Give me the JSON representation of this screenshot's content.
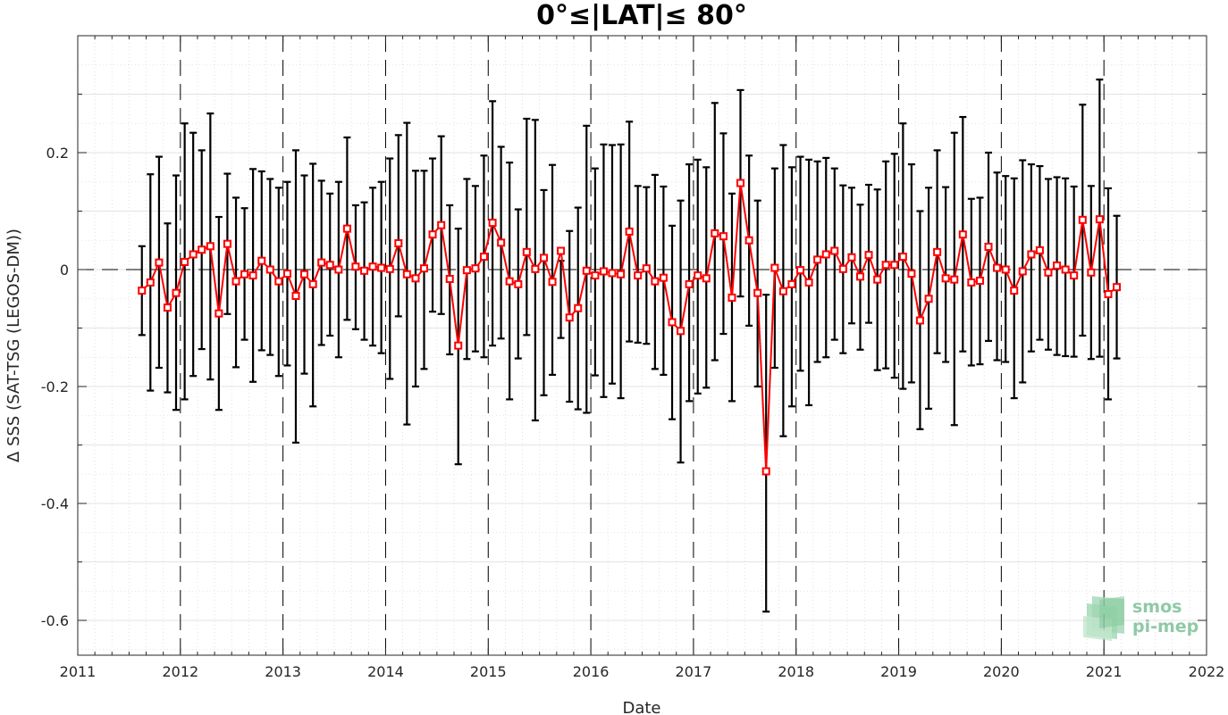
{
  "chart_data": {
    "type": "line",
    "title": "0°≤|LAT|≤ 80°",
    "xlabel": "Date",
    "ylabel": "Δ SSS (SAT-TSG (LEGOS-DM))",
    "xlim": [
      2011,
      2022
    ],
    "ylim": [
      -0.66,
      0.4
    ],
    "xticks": [
      2011,
      2012,
      2013,
      2014,
      2015,
      2016,
      2017,
      2018,
      2019,
      2020,
      2021,
      2022
    ],
    "xtick_labels": [
      "2011",
      "2012",
      "2013",
      "2014",
      "2015",
      "2016",
      "2017",
      "2018",
      "2019",
      "2020",
      "2021",
      "2022"
    ],
    "yticks": [
      0.2,
      0,
      -0.2,
      -0.4,
      -0.6
    ],
    "ytick_labels": [
      "0.2",
      "0",
      "-0.2",
      "-0.4",
      "-0.6"
    ],
    "grid": true,
    "reference_line_y": 0,
    "year_boundary_lines": true,
    "series": [
      {
        "color": "#ff0000",
        "marker": "square",
        "errorbar_color": "#000000",
        "x": [
          2011.625,
          2011.708,
          2011.792,
          2011.875,
          2011.958,
          2012.042,
          2012.125,
          2012.208,
          2012.292,
          2012.375,
          2012.458,
          2012.542,
          2012.625,
          2012.708,
          2012.792,
          2012.875,
          2012.958,
          2013.042,
          2013.125,
          2013.208,
          2013.292,
          2013.375,
          2013.458,
          2013.542,
          2013.625,
          2013.708,
          2013.792,
          2013.875,
          2013.958,
          2014.042,
          2014.125,
          2014.208,
          2014.292,
          2014.375,
          2014.458,
          2014.542,
          2014.625,
          2014.708,
          2014.792,
          2014.875,
          2014.958,
          2015.042,
          2015.125,
          2015.208,
          2015.292,
          2015.375,
          2015.458,
          2015.542,
          2015.625,
          2015.708,
          2015.792,
          2015.875,
          2015.958,
          2016.042,
          2016.125,
          2016.208,
          2016.292,
          2016.375,
          2016.458,
          2016.542,
          2016.625,
          2016.708,
          2016.792,
          2016.875,
          2016.958,
          2017.042,
          2017.125,
          2017.208,
          2017.292,
          2017.375,
          2017.458,
          2017.542,
          2017.625,
          2017.708,
          2017.792,
          2017.875,
          2017.958,
          2018.042,
          2018.125,
          2018.208,
          2018.292,
          2018.375,
          2018.458,
          2018.542,
          2018.625,
          2018.708,
          2018.792,
          2018.875,
          2018.958,
          2019.042,
          2019.125,
          2019.208,
          2019.292,
          2019.375,
          2019.458,
          2019.542,
          2019.625,
          2019.708,
          2019.792,
          2019.875,
          2019.958,
          2020.042,
          2020.125,
          2020.208,
          2020.292,
          2020.375,
          2020.458,
          2020.542,
          2020.625,
          2020.708,
          2020.792,
          2020.875,
          2020.958,
          2021.042,
          2021.125
        ],
        "y": [
          -0.036,
          -0.022,
          0.012,
          -0.065,
          -0.04,
          0.013,
          0.026,
          0.034,
          0.04,
          -0.075,
          0.044,
          -0.02,
          -0.008,
          -0.01,
          0.015,
          0,
          -0.02,
          -0.007,
          -0.045,
          -0.008,
          -0.025,
          0.012,
          0.008,
          0,
          0.07,
          0.005,
          -0.002,
          0.005,
          0.003,
          0.001,
          0.045,
          -0.008,
          -0.015,
          0.002,
          0.06,
          0.076,
          -0.016,
          -0.13,
          -0.001,
          0.002,
          0.022,
          0.08,
          0.046,
          -0.02,
          -0.025,
          0.03,
          0.001,
          0.02,
          -0.021,
          0.032,
          -0.082,
          -0.066,
          -0.002,
          -0.01,
          -0.003,
          -0.006,
          -0.008,
          0.065,
          -0.01,
          0.002,
          -0.02,
          -0.014,
          -0.09,
          -0.105,
          -0.025,
          -0.01,
          -0.015,
          0.062,
          0.057,
          -0.048,
          0.148,
          0.05,
          -0.04,
          -0.345,
          0.003,
          -0.037,
          -0.025,
          -0.001,
          -0.022,
          0.017,
          0.026,
          0.032,
          0.001,
          0.021,
          -0.012,
          0.025,
          -0.017,
          0.008,
          0.008,
          0.022,
          -0.007,
          -0.087,
          -0.05,
          0.03,
          -0.015,
          -0.017,
          0.06,
          -0.022,
          -0.019,
          0.039,
          0.003,
          0,
          -0.036,
          -0.003,
          0.026,
          0.033,
          -0.005,
          0.007,
          0,
          -0.01,
          0.085,
          -0.005,
          0.086,
          -0.042,
          -0.03
        ],
        "err_low": [
          -0.112,
          -0.207,
          -0.168,
          -0.21,
          -0.24,
          -0.222,
          -0.182,
          -0.136,
          -0.188,
          -0.24,
          -0.076,
          -0.167,
          -0.12,
          -0.192,
          -0.138,
          -0.146,
          -0.182,
          -0.164,
          -0.296,
          -0.178,
          -0.234,
          -0.129,
          -0.113,
          -0.15,
          -0.086,
          -0.102,
          -0.12,
          -0.13,
          -0.143,
          -0.187,
          -0.08,
          -0.265,
          -0.2,
          -0.17,
          -0.072,
          -0.076,
          -0.145,
          -0.333,
          -0.153,
          -0.14,
          -0.15,
          -0.13,
          -0.118,
          -0.222,
          -0.152,
          -0.112,
          -0.258,
          -0.215,
          -0.18,
          -0.117,
          -0.226,
          -0.239,
          -0.245,
          -0.181,
          -0.218,
          -0.195,
          -0.22,
          -0.123,
          -0.125,
          -0.127,
          -0.17,
          -0.18,
          -0.256,
          -0.33,
          -0.225,
          -0.212,
          -0.202,
          -0.155,
          -0.11,
          -0.225,
          -0.046,
          -0.096,
          -0.2,
          -0.585,
          -0.168,
          -0.285,
          -0.234,
          -0.173,
          -0.232,
          -0.158,
          -0.15,
          -0.12,
          -0.143,
          -0.092,
          -0.137,
          -0.091,
          -0.172,
          -0.169,
          -0.185,
          -0.204,
          -0.193,
          -0.273,
          -0.238,
          -0.143,
          -0.158,
          -0.266,
          -0.14,
          -0.164,
          -0.162,
          -0.122,
          -0.155,
          -0.158,
          -0.22,
          -0.193,
          -0.14,
          -0.12,
          -0.137,
          -0.146,
          -0.148,
          -0.149,
          -0.113,
          -0.153,
          -0.149,
          -0.222,
          -0.152
        ],
        "err_high": [
          0.04,
          0.163,
          0.193,
          0.079,
          0.161,
          0.25,
          0.234,
          0.204,
          0.267,
          0.09,
          0.164,
          0.123,
          0.105,
          0.172,
          0.168,
          0.155,
          0.14,
          0.15,
          0.204,
          0.161,
          0.181,
          0.152,
          0.13,
          0.15,
          0.226,
          0.11,
          0.115,
          0.14,
          0.15,
          0.19,
          0.23,
          0.251,
          0.169,
          0.169,
          0.19,
          0.228,
          0.11,
          0.07,
          0.155,
          0.143,
          0.195,
          0.288,
          0.21,
          0.183,
          0.103,
          0.258,
          0.256,
          0.136,
          0.179,
          0.015,
          0.066,
          0.106,
          0.246,
          0.173,
          0.214,
          0.213,
          0.214,
          0.253,
          0.143,
          0.141,
          0.162,
          0.142,
          0.075,
          0.118,
          0.18,
          0.188,
          0.175,
          0.285,
          0.233,
          0.13,
          0.307,
          0.195,
          0.118,
          -0.043,
          0.173,
          0.213,
          0.175,
          0.193,
          0.188,
          0.185,
          0.191,
          0.173,
          0.144,
          0.14,
          0.111,
          0.145,
          0.137,
          0.185,
          0.198,
          0.25,
          0.18,
          0.1,
          0.14,
          0.204,
          0.141,
          0.234,
          0.261,
          0.121,
          0.123,
          0.2,
          0.166,
          0.16,
          0.156,
          0.187,
          0.18,
          0.177,
          0.155,
          0.158,
          0.156,
          0.142,
          0.282,
          0.143,
          0.325,
          0.139,
          0.092
        ]
      }
    ]
  },
  "logo": {
    "line1": "smos",
    "line2": "pi-mep"
  }
}
